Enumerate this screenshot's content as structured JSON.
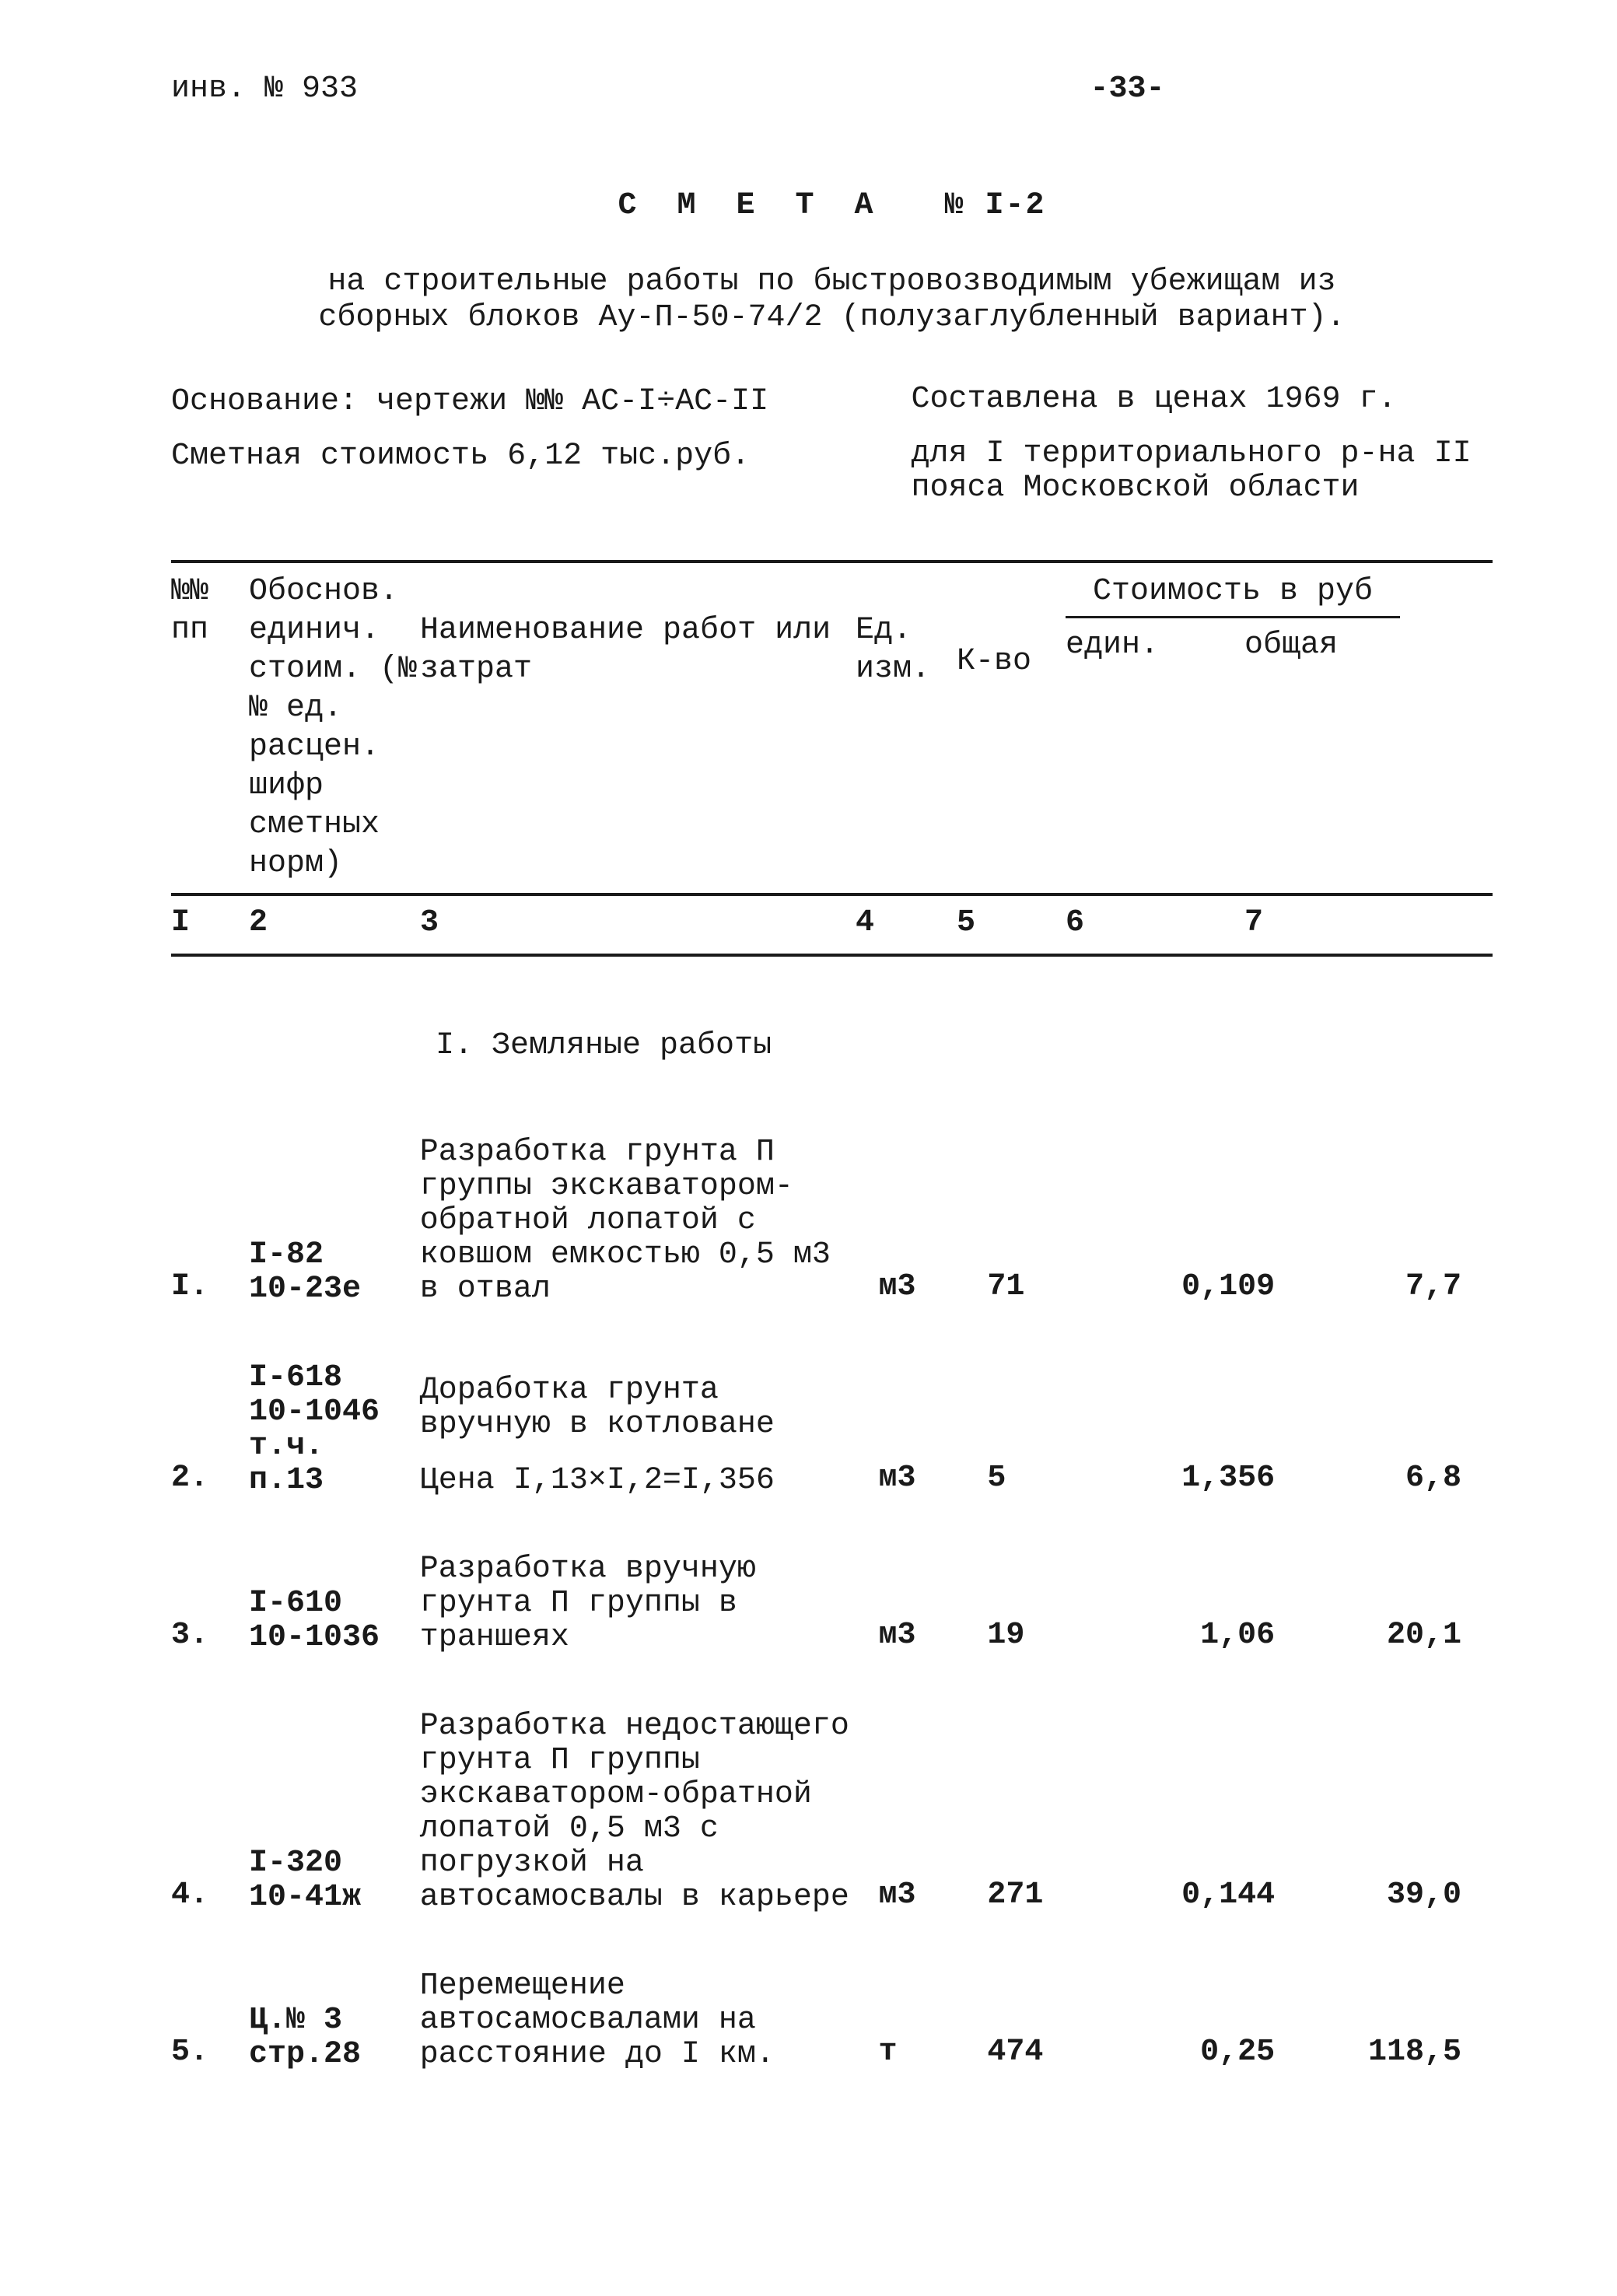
{
  "topline": {
    "inv": "инв. № 933",
    "page": "-33-"
  },
  "title": {
    "label": "С М Е Т А",
    "number": "№ I-2"
  },
  "subtitle": "на строительные работы по быстровозводимым убежищам из сборных блоков Ау-П-50-74/2 (полузаглубленный вариант).",
  "meta": {
    "basis": "Основание: чертежи №№ АС-I÷АС-II",
    "pricing": "Составлена в ценах 1969 г.",
    "cost": "Сметная стоимость 6,12 тыс.руб.",
    "region": "для I территориального р-на II пояса Московской области"
  },
  "header": {
    "c1": "№№\nпп",
    "c2": "Обоснов. единич. стоим. (№№ ед. расцен. шифр сметных норм)",
    "c3": "Наименование работ или затрат",
    "c4": "Ед. изм.",
    "c5": "К-во",
    "c67title": "Стоимость в руб",
    "c6": "един.",
    "c7": "общая"
  },
  "numrow": {
    "c1": "I",
    "c2": "2",
    "c3": "3",
    "c4": "4",
    "c5": "5",
    "c6": "6",
    "c7": "7"
  },
  "section": "I. Земляные работы",
  "rows": [
    {
      "n": "I.",
      "code": "I-82\n10-23е",
      "desc": "Разработка грунта П группы экскаватором-обратной лопатой с ковшом емкостью 0,5 м3 в отвал",
      "unit": "м3",
      "qty": "71",
      "uprice": "0,109",
      "total": "7,7",
      "note": ""
    },
    {
      "n": "2.",
      "code": "I-618\n10-1046\nт.ч.\nп.13",
      "desc": "Доработка грунта вручную в котловане",
      "unit": "м3",
      "qty": "5",
      "uprice": "1,356",
      "total": "6,8",
      "note": "Цена I,13×I,2=I,356"
    },
    {
      "n": "3.",
      "code": "I-610\n10-1036",
      "desc": "Разработка вручную грунта П группы в траншеях",
      "unit": "м3",
      "qty": "19",
      "uprice": "1,06",
      "total": "20,1",
      "note": ""
    },
    {
      "n": "4.",
      "code": "I-320\n10-41ж",
      "desc": "Разработка недостающего грунта П группы экскаватором-обратной лопатой 0,5 м3 с погрузкой на автосамосвалы в карьере",
      "unit": "м3",
      "qty": "271",
      "uprice": "0,144",
      "total": "39,0",
      "note": ""
    },
    {
      "n": "5.",
      "code": "Ц.№ 3\nстр.28",
      "desc": "Перемещение автосамосвалами на расстояние до I км.",
      "unit": "т",
      "qty": "474",
      "uprice": "0,25",
      "total": "118,5",
      "note": ""
    }
  ]
}
